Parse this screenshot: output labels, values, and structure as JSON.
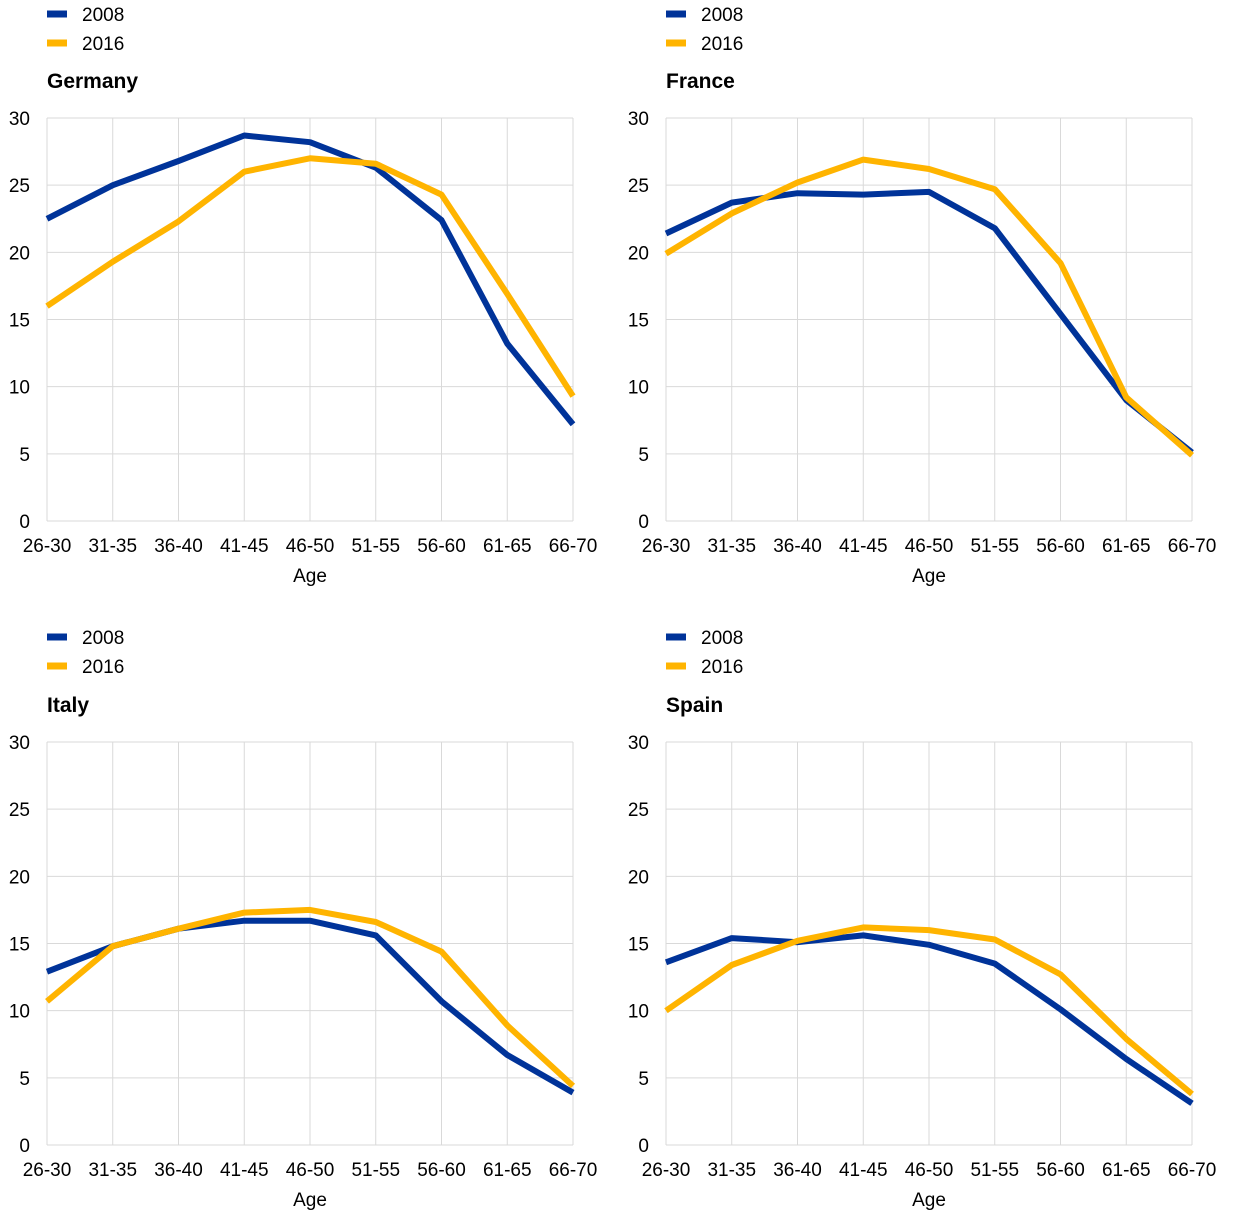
{
  "chart_data": [
    {
      "type": "line",
      "title": "Germany",
      "xlabel": "Age",
      "ylabel": "",
      "ylim": [
        0,
        30
      ],
      "yticks": [
        0,
        5,
        10,
        15,
        20,
        25,
        30
      ],
      "grid": true,
      "legend_position": "top-left",
      "categories": [
        "26-30",
        "31-35",
        "36-40",
        "41-45",
        "46-50",
        "51-55",
        "56-60",
        "61-65",
        "66-70"
      ],
      "series": [
        {
          "name": "2008",
          "color": "#003399",
          "values": [
            22.5,
            25.0,
            26.8,
            28.7,
            28.2,
            26.3,
            22.4,
            13.2,
            7.2
          ]
        },
        {
          "name": "2016",
          "color": "#ffb400",
          "values": [
            16.0,
            19.3,
            22.3,
            26.0,
            27.0,
            26.6,
            24.3,
            16.9,
            9.3
          ]
        }
      ]
    },
    {
      "type": "line",
      "title": "France",
      "xlabel": "Age",
      "ylabel": "",
      "ylim": [
        0,
        30
      ],
      "yticks": [
        0,
        5,
        10,
        15,
        20,
        25,
        30
      ],
      "grid": true,
      "legend_position": "top-left",
      "categories": [
        "26-30",
        "31-35",
        "36-40",
        "41-45",
        "46-50",
        "51-55",
        "56-60",
        "61-65",
        "66-70"
      ],
      "series": [
        {
          "name": "2008",
          "color": "#003399",
          "values": [
            21.4,
            23.7,
            24.4,
            24.3,
            24.5,
            21.8,
            15.4,
            9.0,
            5.1
          ]
        },
        {
          "name": "2016",
          "color": "#ffb400",
          "values": [
            19.9,
            22.9,
            25.2,
            26.9,
            26.2,
            24.7,
            19.2,
            9.2,
            4.9
          ]
        }
      ]
    },
    {
      "type": "line",
      "title": "Italy",
      "xlabel": "Age",
      "ylabel": "",
      "ylim": [
        0,
        30
      ],
      "yticks": [
        0,
        5,
        10,
        15,
        20,
        25,
        30
      ],
      "grid": true,
      "legend_position": "top-left",
      "categories": [
        "26-30",
        "31-35",
        "36-40",
        "41-45",
        "46-50",
        "51-55",
        "56-60",
        "61-65",
        "66-70"
      ],
      "series": [
        {
          "name": "2008",
          "color": "#003399",
          "values": [
            12.9,
            14.8,
            16.1,
            16.7,
            16.7,
            15.6,
            10.7,
            6.7,
            3.9
          ]
        },
        {
          "name": "2016",
          "color": "#ffb400",
          "values": [
            10.7,
            14.8,
            16.1,
            17.3,
            17.5,
            16.6,
            14.4,
            8.9,
            4.4
          ]
        }
      ]
    },
    {
      "type": "line",
      "title": "Spain",
      "xlabel": "Age",
      "ylabel": "",
      "ylim": [
        0,
        30
      ],
      "yticks": [
        0,
        5,
        10,
        15,
        20,
        25,
        30
      ],
      "grid": true,
      "legend_position": "top-left",
      "categories": [
        "26-30",
        "31-35",
        "36-40",
        "41-45",
        "46-50",
        "51-55",
        "56-60",
        "61-65",
        "66-70"
      ],
      "series": [
        {
          "name": "2008",
          "color": "#003399",
          "values": [
            13.6,
            15.4,
            15.1,
            15.6,
            14.9,
            13.5,
            10.1,
            6.4,
            3.1
          ]
        },
        {
          "name": "2016",
          "color": "#ffb400",
          "values": [
            10.0,
            13.4,
            15.2,
            16.2,
            16.0,
            15.3,
            12.7,
            7.9,
            3.8
          ]
        }
      ]
    }
  ]
}
